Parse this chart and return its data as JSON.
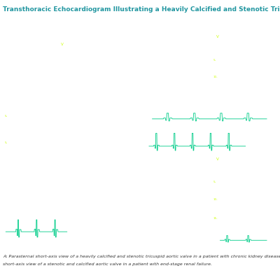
{
  "title": "Transthoracic Echocardiogram Illustrating a Heavily Calcified and Stenotic Tricuspid Aortic Valve",
  "title_color": "#2196a0",
  "title_fontsize": 6.5,
  "caption_line1": "A: Parasternal short-axis view of a heavily calcified and stenotic tricuspid aortic valve in a patient with chronic kidney disease. B: Parasternal",
  "caption_line2": "short-axis view of a stenotic and calcified aortic valve in a patient with end-stage renal failure.",
  "caption_fontsize": 4.5,
  "caption_color": "#333333",
  "bg_color": "#000000",
  "outer_bg": "#ffffff",
  "ecg_color": "#00cc88",
  "separator_color": "#e8a0a0",
  "label_color_hex": "#ccff00",
  "white_label_color": "#ffffff"
}
